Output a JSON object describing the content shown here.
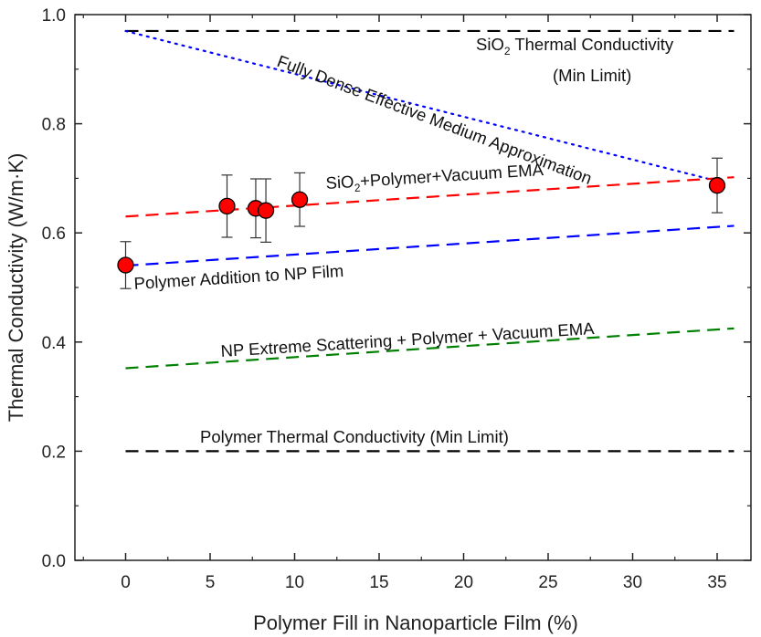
{
  "chart_data": {
    "type": "scatter",
    "xlabel": "Polymer Fill in Nanoparticle Film (%)",
    "ylabel": "Thermal Conductivity (W/m·K)",
    "xlim": [
      -3,
      37
    ],
    "ylim": [
      0,
      1.0
    ],
    "x_ticks": [
      0,
      5,
      10,
      15,
      20,
      25,
      30,
      35
    ],
    "y_ticks": [
      0.0,
      0.2,
      0.4,
      0.6,
      0.8,
      1.0
    ],
    "x_tick_labels": [
      "0",
      "5",
      "10",
      "15",
      "20",
      "25",
      "30",
      "35"
    ],
    "y_tick_labels": [
      "0.0",
      "0.2",
      "0.4",
      "0.6",
      "0.8",
      "1.0"
    ],
    "grid": false,
    "legend": "none",
    "points": {
      "color": "#ff0000",
      "data": [
        {
          "x": 0,
          "y": 0.541,
          "err": 0.043
        },
        {
          "x": 6.0,
          "y": 0.649,
          "err": 0.057
        },
        {
          "x": 7.7,
          "y": 0.645,
          "err": 0.054
        },
        {
          "x": 8.3,
          "y": 0.641,
          "err": 0.058
        },
        {
          "x": 10.3,
          "y": 0.661,
          "err": 0.049
        },
        {
          "x": 35.0,
          "y": 0.687,
          "err": 0.05
        }
      ]
    },
    "lines": [
      {
        "id": "sio2-limit",
        "color": "#000000",
        "dash": "dashed",
        "x": [
          0,
          36
        ],
        "y": [
          0.97,
          0.97
        ]
      },
      {
        "id": "fully-dense-ema",
        "color": "#0000ff",
        "dash": "dotted",
        "x": [
          0,
          35
        ],
        "y": [
          0.97,
          0.695
        ]
      },
      {
        "id": "sio2-polymer-vacuum-ema",
        "color": "#ff0000",
        "dash": "dashed",
        "x": [
          0,
          36
        ],
        "y": [
          0.63,
          0.702
        ]
      },
      {
        "id": "polymer-addition",
        "color": "#0000ff",
        "dash": "dashed",
        "x": [
          0,
          36
        ],
        "y": [
          0.54,
          0.613
        ]
      },
      {
        "id": "np-extreme-scattering-ema",
        "color": "#008000",
        "dash": "dashed",
        "x": [
          0,
          36
        ],
        "y": [
          0.352,
          0.425
        ]
      },
      {
        "id": "polymer-limit",
        "color": "#000000",
        "dash": "dashed",
        "x": [
          0,
          36
        ],
        "y": [
          0.2,
          0.2
        ]
      }
    ],
    "annotations": {
      "sio2_prefix": "SiO",
      "sio2_sub": "2",
      "sio2_suffix": " Thermal Conductivity",
      "sio2_line2": "(Min Limit)",
      "fully_dense": "Fully Dense Effective Medium Approximation",
      "ema_prefix": "SiO",
      "ema_sub": "2",
      "ema_suffix": "+Polymer+Vacuum EMA",
      "polymer_addition": "Polymer Addition to NP Film",
      "np_extreme": "NP Extreme Scattering + Polymer + Vacuum EMA",
      "polymer_limit": "Polymer Thermal Conductivity (Min Limit)"
    }
  }
}
